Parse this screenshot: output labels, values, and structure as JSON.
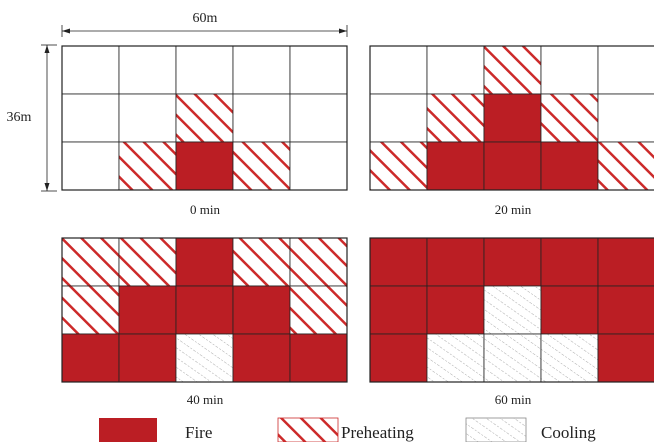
{
  "dimensions": {
    "width_label": "60m",
    "height_label": "36m"
  },
  "colors": {
    "fire": "#bb1e24",
    "preheating_stroke": "#cc2a2a",
    "cooling_stroke": "#aaaaaa",
    "grid_line": "#222222",
    "background": "#ffffff"
  },
  "grid": {
    "rows": 3,
    "cols": 5
  },
  "panels": [
    {
      "time_label": "0 min",
      "cells": [
        [
          "empty",
          "empty",
          "empty",
          "empty",
          "empty"
        ],
        [
          "empty",
          "empty",
          "preheating",
          "empty",
          "empty"
        ],
        [
          "empty",
          "preheating",
          "fire",
          "preheating",
          "empty"
        ]
      ]
    },
    {
      "time_label": "20 min",
      "cells": [
        [
          "empty",
          "empty",
          "preheating",
          "empty",
          "empty"
        ],
        [
          "empty",
          "preheating",
          "fire",
          "preheating",
          "empty"
        ],
        [
          "preheating",
          "fire",
          "fire",
          "fire",
          "preheating"
        ]
      ]
    },
    {
      "time_label": "40 min",
      "cells": [
        [
          "preheating",
          "preheating",
          "fire",
          "preheating",
          "preheating"
        ],
        [
          "preheating",
          "fire",
          "fire",
          "fire",
          "preheating"
        ],
        [
          "fire",
          "fire",
          "cooling",
          "fire",
          "fire"
        ]
      ]
    },
    {
      "time_label": "60 min",
      "cells": [
        [
          "fire",
          "fire",
          "fire",
          "fire",
          "fire"
        ],
        [
          "fire",
          "fire",
          "cooling",
          "fire",
          "fire"
        ],
        [
          "fire",
          "cooling",
          "cooling",
          "cooling",
          "fire"
        ]
      ]
    }
  ],
  "legend": [
    {
      "state": "fire",
      "label": "Fire"
    },
    {
      "state": "preheating",
      "label": "Preheating"
    },
    {
      "state": "cooling",
      "label": "Cooling"
    }
  ]
}
